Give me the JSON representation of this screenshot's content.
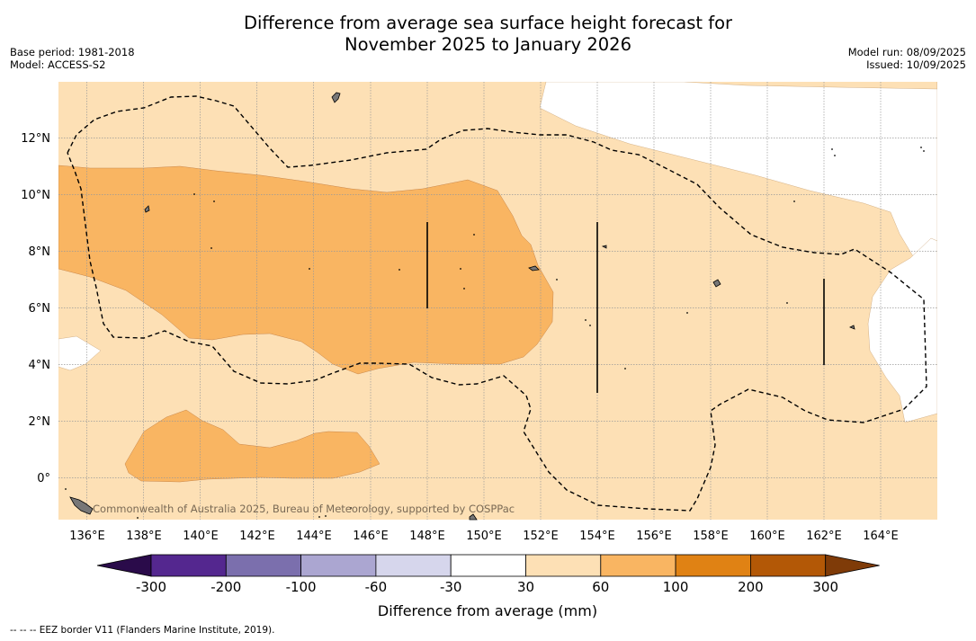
{
  "title_line1": "Difference from average sea surface height forecast for",
  "title_line2": "November 2025 to January 2026",
  "base_period": "Base period: 1981-2018",
  "model": "Model: ACCESS-S2",
  "model_run": "Model run: 08/09/2025",
  "issued": "Issued: 10/09/2025",
  "copyright": "Commonwealth of Australia 2025, Bureau of Meteorology, supported by COSPPac",
  "footnote": "-- -- -- EEZ border V11 (Flanders Marine Institute, 2019).",
  "colorbar": {
    "label": "Difference from average (mm)",
    "ticks": [
      "-300",
      "-200",
      "-100",
      "-60",
      "-30",
      "30",
      "60",
      "100",
      "200",
      "300"
    ],
    "colors": [
      "#2a0b4a",
      "#54278f",
      "#7b6fad",
      "#aba6d1",
      "#d6d6ec",
      "#ffffff",
      "#fde0b5",
      "#f9b562",
      "#e08214",
      "#b35806",
      "#7f3b08"
    ]
  },
  "map": {
    "lon_range": [
      135,
      166
    ],
    "lat_range": [
      -1.5,
      14
    ],
    "lon_ticks": [
      "136°E",
      "138°E",
      "140°E",
      "142°E",
      "144°E",
      "146°E",
      "148°E",
      "150°E",
      "152°E",
      "154°E",
      "156°E",
      "158°E",
      "160°E",
      "162°E",
      "164°E"
    ],
    "lat_ticks": [
      "12°N",
      "10°N",
      "8°N",
      "6°N",
      "4°N",
      "2°N",
      "0°"
    ]
  }
}
